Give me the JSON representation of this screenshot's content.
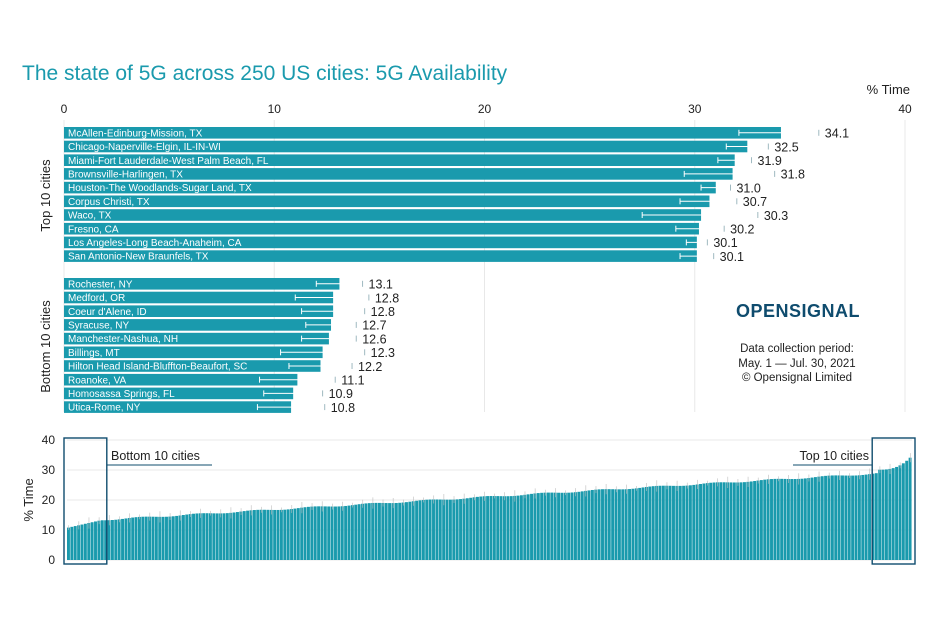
{
  "header": {
    "title": "The state of 5G across 250 US cities: 5G Availability",
    "unit_label": "% Time"
  },
  "brand": {
    "logo_text": "OPENSIGNAL",
    "note_lines": [
      "Data collection period:",
      "May. 1 — Jul. 30, 2021",
      "© Opensignal Limited"
    ]
  },
  "colors": {
    "bar": "#1a9aad",
    "title": "#1a9aad",
    "logo": "#0f4c6e",
    "error_bar": "#ffffff",
    "box": "#0f4c6e"
  },
  "chart_data": [
    {
      "type": "bar",
      "orientation": "horizontal",
      "title": "The state of 5G across 250 US cities: 5G Availability",
      "xlabel": "% Time",
      "xlim": [
        0,
        40
      ],
      "xticks": [
        0,
        10,
        20,
        30,
        40
      ],
      "grid": true,
      "groups": [
        {
          "name": "Top 10 cities",
          "categories": [
            "McAllen-Edinburg-Mission, TX",
            "Chicago-Naperville-Elgin, IL-IN-WI",
            "Miami-Fort Lauderdale-West Palm Beach, FL",
            "Brownsville-Harlingen, TX",
            "Houston-The Woodlands-Sugar Land, TX",
            "Corpus Christi, TX",
            "Waco, TX",
            "Fresno, CA",
            "Los Angeles-Long Beach-Anaheim, CA",
            "San Antonio-New Braunfels, TX"
          ],
          "values": [
            34.1,
            32.5,
            31.9,
            31.8,
            31.0,
            30.7,
            30.3,
            30.2,
            30.1,
            30.1
          ],
          "labels": [
            "34.1",
            "32.5",
            "31.9",
            "31.8",
            "31.0",
            "30.7",
            "30.3",
            "30.2",
            "30.1",
            "30.1"
          ],
          "ci_low": [
            32.1,
            31.5,
            31.1,
            29.5,
            30.3,
            29.3,
            27.5,
            29.1,
            29.6,
            29.3
          ],
          "ci_high": [
            35.9,
            33.5,
            32.7,
            33.8,
            31.7,
            32.0,
            33.0,
            31.4,
            30.6,
            30.9
          ]
        },
        {
          "name": "Bottom 10 cities",
          "categories": [
            "Rochester, NY",
            "Medford, OR",
            "Coeur d'Alene, ID",
            "Syracuse, NY",
            "Manchester-Nashua, NH",
            "Billings, MT",
            "Hilton Head Island-Bluffton-Beaufort, SC",
            "Roanoke, VA",
            "Homosassa Springs, FL",
            "Utica-Rome, NY"
          ],
          "values": [
            13.1,
            12.8,
            12.8,
            12.7,
            12.6,
            12.3,
            12.2,
            11.1,
            10.9,
            10.8
          ],
          "labels": [
            "13.1",
            "12.8",
            "12.8",
            "12.7",
            "12.6",
            "12.3",
            "12.2",
            "11.1",
            "10.9",
            "10.8"
          ],
          "ci_low": [
            12.0,
            11.0,
            11.3,
            11.5,
            11.3,
            10.3,
            10.7,
            9.3,
            9.5,
            9.2
          ],
          "ci_high": [
            14.2,
            14.5,
            14.3,
            13.9,
            13.9,
            14.3,
            13.7,
            12.9,
            12.3,
            12.4
          ]
        }
      ]
    },
    {
      "type": "bar",
      "orientation": "vertical",
      "ylabel": "% Time",
      "ylim": [
        0,
        40
      ],
      "yticks": [
        0,
        10,
        20,
        30,
        40
      ],
      "count": 250,
      "sorted": "ascending",
      "approx_values_first_last": [
        10.8,
        34.1
      ],
      "error_bars": true,
      "highlights": [
        {
          "label": "Bottom 10 cities",
          "side": "left",
          "count": 10
        },
        {
          "label": "Top 10 cities",
          "side": "right",
          "count": 10
        }
      ]
    }
  ]
}
